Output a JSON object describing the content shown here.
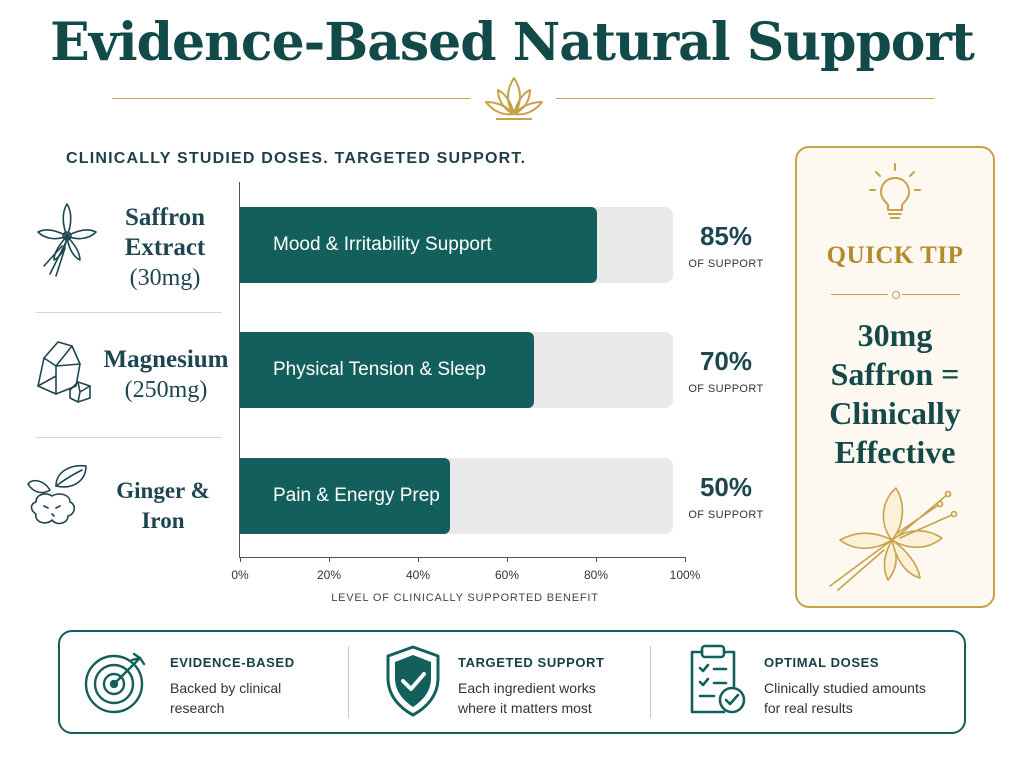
{
  "header": {
    "title": "Evidence-Based Natural Support",
    "subtitle": "CLINICALLY STUDIED DOSES. TARGETED SUPPORT."
  },
  "ingredients": [
    {
      "name_lines": [
        "Saffron",
        "Extract"
      ],
      "dose": "(30mg)",
      "icon": "saffron-flower-icon"
    },
    {
      "name_lines": [
        "Magnesium"
      ],
      "dose": "(250mg)",
      "icon": "mineral-rock-icon"
    },
    {
      "name_lines": [
        "Ginger & Iron"
      ],
      "dose": "",
      "icon": "ginger-root-icon"
    }
  ],
  "chart_data": {
    "type": "bar",
    "orientation": "horizontal",
    "categories": [
      "Mood & Irritability Support",
      "Physical Tension & Sleep",
      "Pain & Energy Prep"
    ],
    "values": [
      85,
      70,
      50
    ],
    "value_labels": [
      "85%",
      "70%",
      "50%"
    ],
    "value_sublabel": "OF SUPPORT",
    "xlabel": "LEVEL OF CLINICALLY SUPPORTED BENEFIT",
    "ylabel": "",
    "xlim": [
      0,
      100
    ],
    "x_ticks": [
      "0%",
      "20%",
      "40%",
      "60%",
      "80%",
      "100%"
    ],
    "grid": false,
    "colors": {
      "bar": "#135f5c",
      "track": "#e9e9e9"
    }
  },
  "tip": {
    "title": "QUICK TIP",
    "text_lines": [
      "30mg",
      "Saffron =",
      "Clinically",
      "Effective"
    ],
    "icon": "lightbulb-icon"
  },
  "features": [
    {
      "title": "EVIDENCE-BASED",
      "desc_lines": [
        "Backed by clinical",
        "research"
      ],
      "icon": "target-icon"
    },
    {
      "title": "TARGETED SUPPORT",
      "desc_lines": [
        "Each ingredient works",
        "where it matters most"
      ],
      "icon": "shield-check-icon"
    },
    {
      "title": "OPTIMAL DOSES",
      "desc_lines": [
        "Clinically studied amounts",
        "for real results"
      ],
      "icon": "clipboard-check-icon"
    }
  ],
  "colors": {
    "primary": "#135f5c",
    "accent_gold": "#c9a14a",
    "title": "#124a49"
  }
}
